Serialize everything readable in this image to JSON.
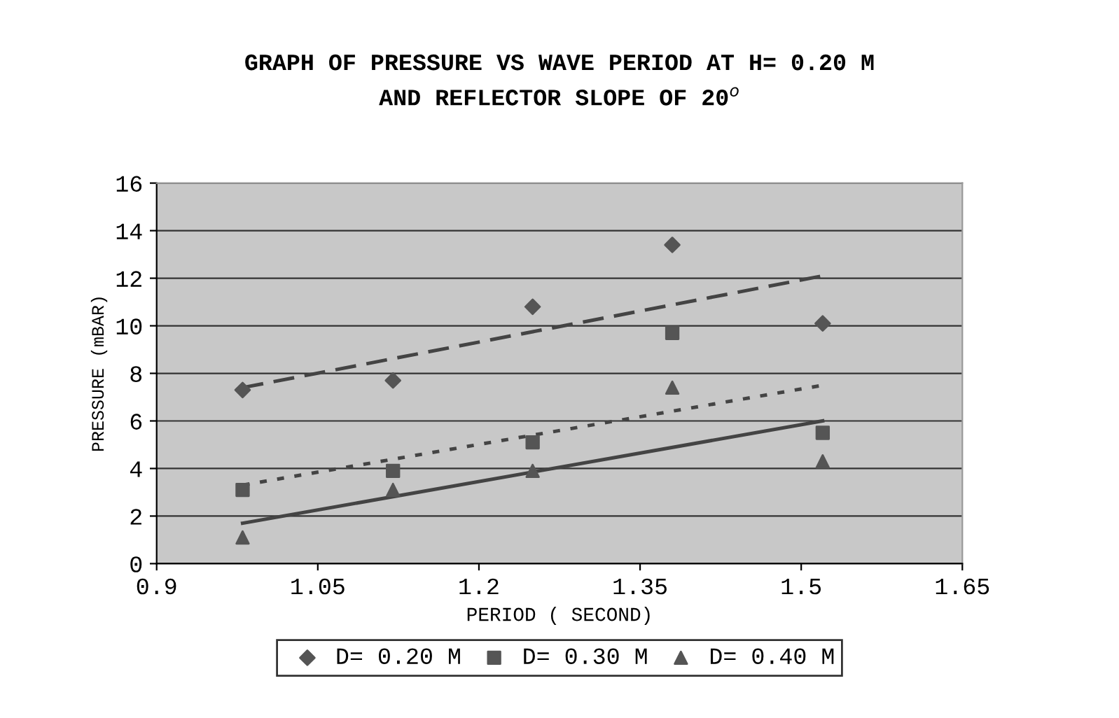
{
  "chart_data": {
    "type": "scatter",
    "title": "GRAPH OF PRESSURE VS WAVE PERIOD AT H= 0.20 M\nAND REFLECTOR SLOPE OF 20$^{o}$",
    "xlabel": "PERIOD ( SECOND)",
    "ylabel": "PRESSURE (mBAR)",
    "xlim": [
      0.9,
      1.65
    ],
    "xticks": [
      0.9,
      1.05,
      1.2,
      1.35,
      1.5,
      1.65
    ],
    "ylim": [
      0,
      16
    ],
    "yticks": [
      0,
      2,
      4,
      6,
      8,
      10,
      12,
      14,
      16
    ],
    "grid": "y",
    "legend": "bottom",
    "series": [
      {
        "name": "D= 0.20 M",
        "color": "#555555",
        "marker": "diamond",
        "x": [
          0.98,
          1.12,
          1.25,
          1.38,
          1.52
        ],
        "values": [
          7.3,
          7.7,
          10.8,
          13.4,
          10.1
        ]
      },
      {
        "name": "D= 0.30 M",
        "color": "#555555",
        "marker": "square",
        "x": [
          0.98,
          1.12,
          1.25,
          1.38,
          1.52
        ],
        "values": [
          3.1,
          3.9,
          5.1,
          9.7,
          5.5
        ]
      },
      {
        "name": "D= 0.40 M",
        "color": "#555555",
        "marker": "triangle",
        "x": [
          0.98,
          1.12,
          1.25,
          1.38,
          1.52
        ],
        "values": [
          1.1,
          3.1,
          3.9,
          7.4,
          4.3
        ]
      },
      {
        "type": "line",
        "color": "#444444",
        "line_style": "dashed",
        "x": [
          0.98,
          1.52
        ],
        "values": [
          7.4,
          12.1
        ]
      },
      {
        "type": "line",
        "color": "#444444",
        "line_style": "dotted",
        "x": [
          0.98,
          1.52
        ],
        "values": [
          3.3,
          7.5
        ]
      },
      {
        "type": "line",
        "color": "#444444",
        "line_style": "solid",
        "x": [
          0.98,
          1.52
        ],
        "values": [
          1.7,
          6.0
        ]
      }
    ]
  }
}
